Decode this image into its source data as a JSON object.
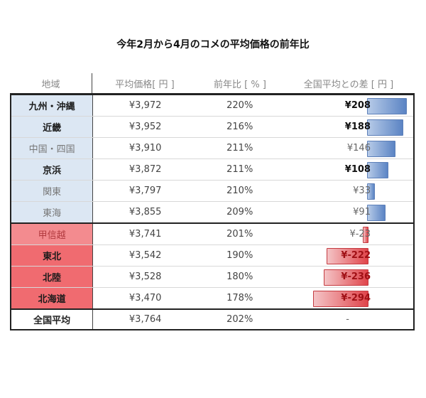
{
  "title": "今年2月から4月のコメの平均価格の前年比",
  "headers": {
    "region": "地域",
    "price": "平均価格[ 円 ]",
    "yoy": "前年比 [ % ]",
    "diff": "全国平均との差 [ 円 ]"
  },
  "rows": [
    {
      "region": "九州・沖縄",
      "price": "¥3,972",
      "yoy": "220%",
      "diff": "¥208",
      "diff_value": 208,
      "emphasis": "bold",
      "group": "blue"
    },
    {
      "region": "近畿",
      "price": "¥3,952",
      "yoy": "216%",
      "diff": "¥188",
      "diff_value": 188,
      "emphasis": "bold",
      "group": "blue"
    },
    {
      "region": "中国・四国",
      "price": "¥3,910",
      "yoy": "211%",
      "diff": "¥146",
      "diff_value": 146,
      "emphasis": "light",
      "group": "blue"
    },
    {
      "region": "京浜",
      "price": "¥3,872",
      "yoy": "211%",
      "diff": "¥108",
      "diff_value": 108,
      "emphasis": "bold",
      "group": "blue"
    },
    {
      "region": "関東",
      "price": "¥3,797",
      "yoy": "210%",
      "diff": "¥33",
      "diff_value": 33,
      "emphasis": "light",
      "group": "blue"
    },
    {
      "region": "東海",
      "price": "¥3,855",
      "yoy": "209%",
      "diff": "¥91",
      "diff_value": 91,
      "emphasis": "light",
      "group": "blue"
    },
    {
      "region": "甲信越",
      "price": "¥3,741",
      "yoy": "201%",
      "diff": "¥-23",
      "diff_value": -23,
      "emphasis": "light",
      "group": "red"
    },
    {
      "region": "東北",
      "price": "¥3,542",
      "yoy": "190%",
      "diff": "¥-222",
      "diff_value": -222,
      "emphasis": "bold",
      "group": "red"
    },
    {
      "region": "北陸",
      "price": "¥3,528",
      "yoy": "180%",
      "diff": "¥-236",
      "diff_value": -236,
      "emphasis": "bold",
      "group": "red"
    },
    {
      "region": "北海道",
      "price": "¥3,470",
      "yoy": "178%",
      "diff": "¥-294",
      "diff_value": -294,
      "emphasis": "bold",
      "group": "red"
    }
  ],
  "average": {
    "region": "全国平均",
    "price": "¥3,764",
    "yoy": "202%",
    "diff": "-"
  },
  "colors": {
    "positive": "#5b84c4",
    "negative": "#e0454b",
    "blue_cell": "#dce7f3",
    "red_cell": "#f06b70"
  }
}
